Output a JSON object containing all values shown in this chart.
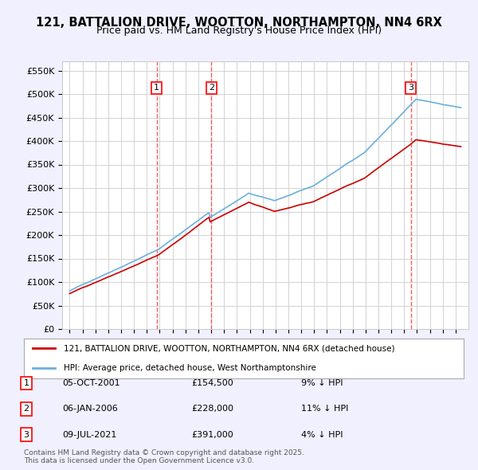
{
  "title_line1": "121, BATTALION DRIVE, WOOTTON, NORTHAMPTON, NN4 6RX",
  "title_line2": "Price paid vs. HM Land Registry's House Price Index (HPI)",
  "ylabel": "",
  "xlabel": "",
  "ylim": [
    0,
    570000
  ],
  "yticks": [
    0,
    50000,
    100000,
    150000,
    200000,
    250000,
    300000,
    350000,
    400000,
    450000,
    500000,
    550000
  ],
  "ytick_labels": [
    "£0",
    "£50K",
    "£100K",
    "£150K",
    "£200K",
    "£250K",
    "£300K",
    "£350K",
    "£400K",
    "£450K",
    "£500K",
    "£550K"
  ],
  "sale_dates": [
    "2001-10-05",
    "2006-01-06",
    "2021-07-09"
  ],
  "sale_prices": [
    154500,
    228000,
    391000
  ],
  "sale_labels": [
    "1",
    "2",
    "3"
  ],
  "sale_pct": [
    "9% ↓ HPI",
    "11% ↓ HPI",
    "4% ↓ HPI"
  ],
  "sale_date_strs": [
    "05-OCT-2001",
    "06-JAN-2006",
    "09-JUL-2021"
  ],
  "sale_price_strs": [
    "£154,500",
    "£228,000",
    "£391,000"
  ],
  "legend_line1": "121, BATTALION DRIVE, WOOTTON, NORTHAMPTON, NN4 6RX (detached house)",
  "legend_line2": "HPI: Average price, detached house, West Northamptonshire",
  "footnote": "Contains HM Land Registry data © Crown copyright and database right 2025.\nThis data is licensed under the Open Government Licence v3.0.",
  "hpi_color": "#6ab0dc",
  "sale_color": "#cc0000",
  "background_color": "#f0f0ff",
  "plot_bg_color": "#ffffff",
  "grid_color": "#cccccc",
  "vline_color": "#ff4444"
}
